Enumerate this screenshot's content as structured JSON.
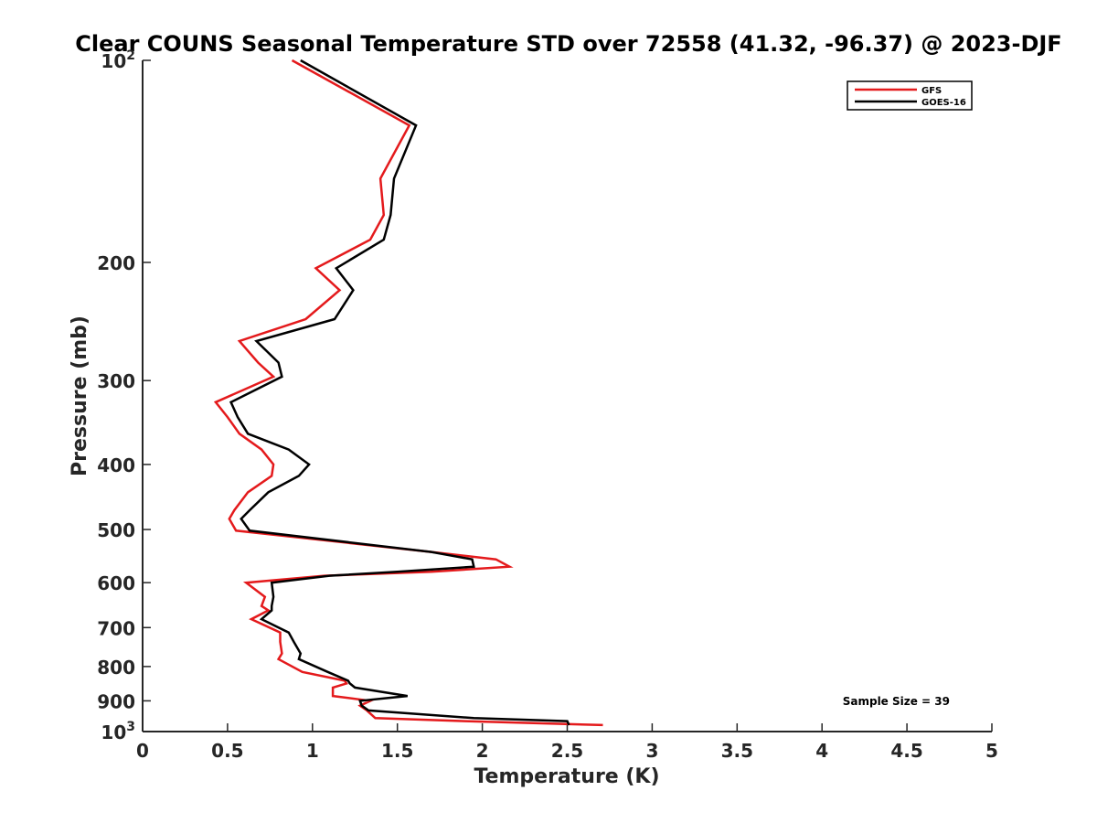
{
  "chart_data": {
    "type": "line",
    "title": "Clear COUNS Seasonal Temperature STD over 72558 (41.32, -96.37) @ 2023-DJF",
    "xlabel": "Temperature (K)",
    "ylabel": "Pressure (mb)",
    "xlim": [
      0,
      5
    ],
    "ylim": [
      100,
      1000
    ],
    "y_scale": "log",
    "y_reversed": true,
    "grid": false,
    "legend_position": "top-right",
    "x_ticks": [
      "0",
      "0.5",
      "1",
      "1.5",
      "2",
      "2.5",
      "3",
      "3.5",
      "4",
      "4.5",
      "5"
    ],
    "x_tick_values": [
      0,
      0.5,
      1,
      1.5,
      2,
      2.5,
      3,
      3.5,
      4,
      4.5,
      5
    ],
    "y_ticks": [
      {
        "value": 100,
        "base": "10",
        "exp": "2"
      },
      {
        "value": 200,
        "text": "200"
      },
      {
        "value": 300,
        "text": "300"
      },
      {
        "value": 400,
        "text": "400"
      },
      {
        "value": 500,
        "text": "500"
      },
      {
        "value": 600,
        "text": "600"
      },
      {
        "value": 700,
        "text": "700"
      },
      {
        "value": 800,
        "text": "800"
      },
      {
        "value": 900,
        "text": "900"
      },
      {
        "value": 1000,
        "base": "10",
        "exp": "3"
      }
    ],
    "annotation": "Sample Size = 39",
    "series": [
      {
        "name": "GFS",
        "color": "#e41a1c",
        "points": [
          [
            0.88,
            100
          ],
          [
            1.57,
            125
          ],
          [
            1.4,
            150
          ],
          [
            1.42,
            170
          ],
          [
            1.34,
            185
          ],
          [
            1.02,
            204
          ],
          [
            1.16,
            220
          ],
          [
            0.96,
            243
          ],
          [
            0.57,
            262
          ],
          [
            0.68,
            282
          ],
          [
            0.77,
            296
          ],
          [
            0.43,
            323
          ],
          [
            0.5,
            340
          ],
          [
            0.57,
            360
          ],
          [
            0.7,
            380
          ],
          [
            0.77,
            400
          ],
          [
            0.76,
            416
          ],
          [
            0.62,
            440
          ],
          [
            0.54,
            468
          ],
          [
            0.51,
            482
          ],
          [
            0.55,
            502
          ],
          [
            1.7,
            540
          ],
          [
            2.08,
            554
          ],
          [
            2.16,
            568
          ],
          [
            1.7,
            578
          ],
          [
            1.07,
            586
          ],
          [
            0.61,
            600
          ],
          [
            0.72,
            630
          ],
          [
            0.7,
            650
          ],
          [
            0.74,
            660
          ],
          [
            0.64,
            680
          ],
          [
            0.81,
            712
          ],
          [
            0.81,
            735
          ],
          [
            0.82,
            765
          ],
          [
            0.8,
            780
          ],
          [
            0.94,
            815
          ],
          [
            1.19,
            840
          ],
          [
            1.2,
            848
          ],
          [
            1.12,
            860
          ],
          [
            1.12,
            885
          ],
          [
            1.34,
            900
          ],
          [
            1.28,
            915
          ],
          [
            1.32,
            930
          ],
          [
            1.37,
            955
          ],
          [
            1.9,
            965
          ],
          [
            2.71,
            978
          ]
        ]
      },
      {
        "name": "GOES-16",
        "color": "#000000",
        "points": [
          [
            0.93,
            100
          ],
          [
            1.61,
            125
          ],
          [
            1.48,
            150
          ],
          [
            1.46,
            170
          ],
          [
            1.42,
            185
          ],
          [
            1.14,
            204
          ],
          [
            1.24,
            220
          ],
          [
            1.13,
            243
          ],
          [
            0.67,
            262
          ],
          [
            0.8,
            282
          ],
          [
            0.82,
            296
          ],
          [
            0.52,
            323
          ],
          [
            0.56,
            340
          ],
          [
            0.62,
            360
          ],
          [
            0.86,
            380
          ],
          [
            0.98,
            400
          ],
          [
            0.92,
            416
          ],
          [
            0.74,
            440
          ],
          [
            0.63,
            468
          ],
          [
            0.58,
            482
          ],
          [
            0.63,
            502
          ],
          [
            1.7,
            540
          ],
          [
            1.94,
            554
          ],
          [
            1.95,
            568
          ],
          [
            1.5,
            578
          ],
          [
            1.1,
            586
          ],
          [
            0.76,
            600
          ],
          [
            0.77,
            630
          ],
          [
            0.76,
            650
          ],
          [
            0.76,
            660
          ],
          [
            0.7,
            680
          ],
          [
            0.86,
            712
          ],
          [
            0.89,
            735
          ],
          [
            0.93,
            765
          ],
          [
            0.92,
            780
          ],
          [
            1.09,
            815
          ],
          [
            1.21,
            840
          ],
          [
            1.22,
            848
          ],
          [
            1.25,
            860
          ],
          [
            1.56,
            885
          ],
          [
            1.28,
            900
          ],
          [
            1.29,
            915
          ],
          [
            1.33,
            930
          ],
          [
            1.95,
            955
          ],
          [
            2.5,
            965
          ],
          [
            2.51,
            978
          ]
        ]
      }
    ]
  }
}
